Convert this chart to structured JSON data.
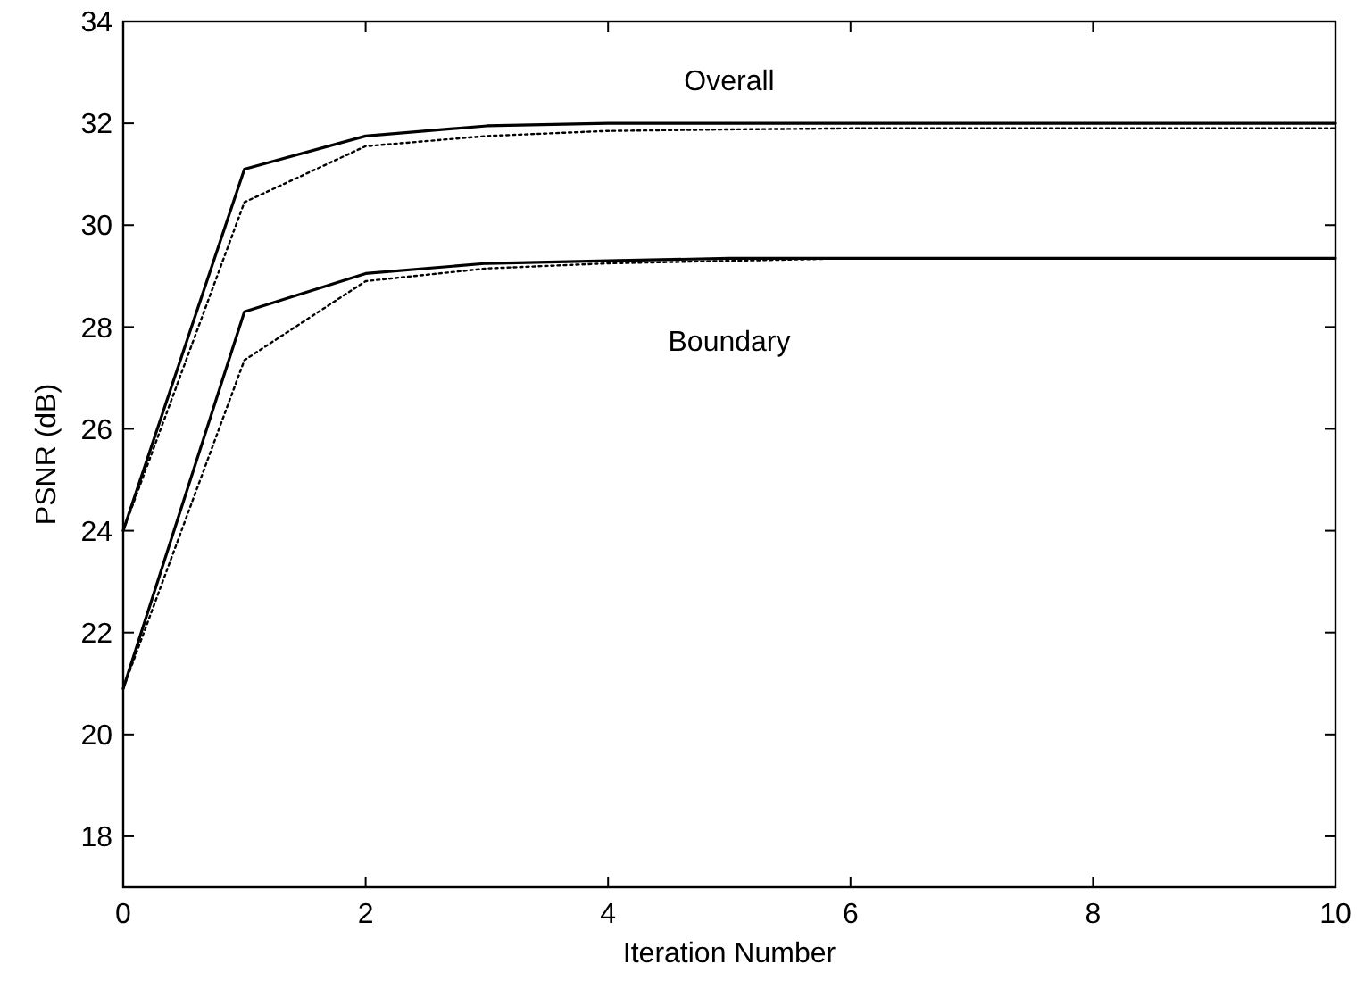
{
  "chart_data": {
    "type": "line",
    "xlabel": "Iteration Number",
    "ylabel": "PSNR (dB)",
    "x": [
      0,
      1,
      2,
      3,
      4,
      5,
      6,
      7,
      8,
      9,
      10
    ],
    "series": [
      {
        "color": "#000000",
        "line_style": "solid",
        "values": [
          24,
          31.1,
          31.75,
          31.95,
          32,
          32,
          32,
          32,
          32,
          32,
          32
        ]
      },
      {
        "color": "#000000",
        "line_style": "dotted",
        "values": [
          24,
          30.45,
          31.55,
          31.75,
          31.85,
          31.88,
          31.9,
          31.9,
          31.9,
          31.9,
          31.9
        ]
      },
      {
        "color": "#000000",
        "line_style": "solid",
        "values": [
          20.9,
          28.3,
          29.05,
          29.25,
          29.3,
          29.35,
          29.35,
          29.35,
          29.35,
          29.35,
          29.35
        ]
      },
      {
        "color": "#000000",
        "line_style": "dotted",
        "values": [
          20.9,
          27.35,
          28.9,
          29.15,
          29.25,
          29.3,
          29.35,
          29.35,
          29.35,
          29.35,
          29.35
        ]
      }
    ],
    "annotations": [
      "Overall",
      "Boundary"
    ],
    "xlim": [
      0,
      10
    ],
    "xticks": [
      0,
      2,
      4,
      6,
      8,
      10
    ],
    "ylim": [
      17,
      34
    ],
    "yticks": [
      18,
      20,
      22,
      24,
      26,
      28,
      30,
      32,
      34
    ],
    "grid": false,
    "marker": "none"
  }
}
